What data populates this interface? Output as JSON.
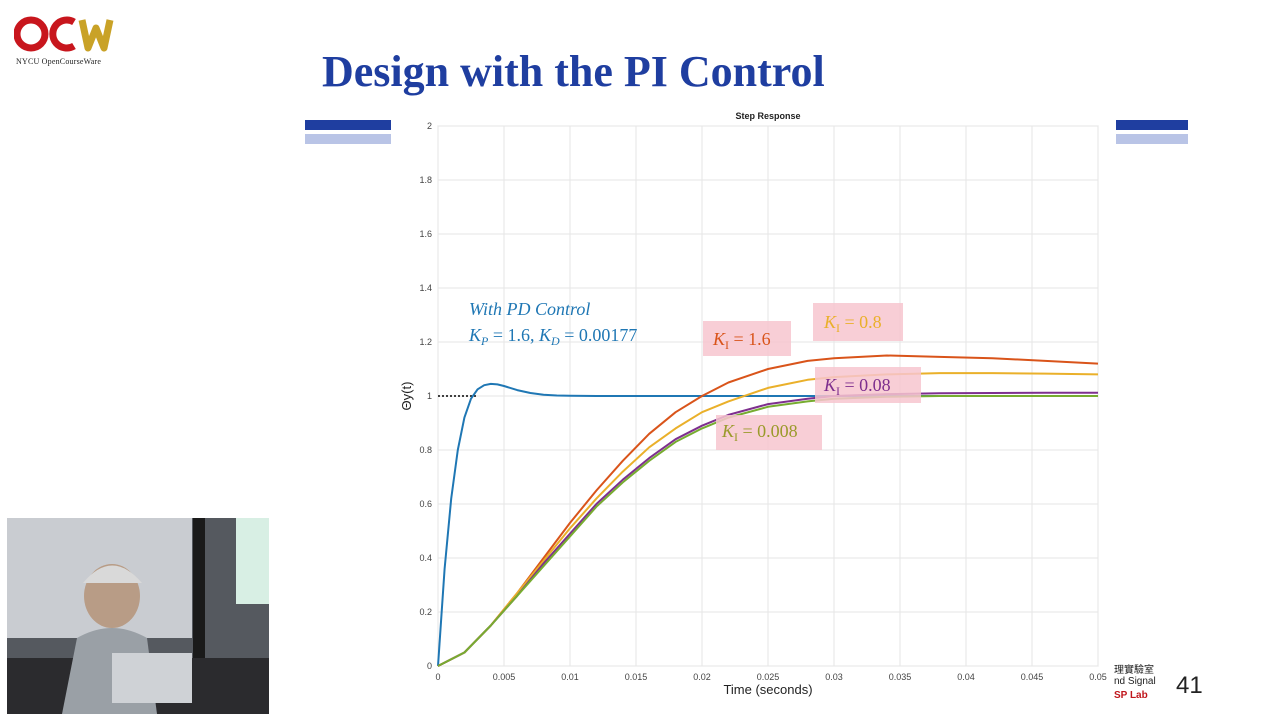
{
  "logo": {
    "text": "OCW",
    "subtitle": "NYCU OpenCourseWare"
  },
  "slide": {
    "title": "Design with the PI Control",
    "page_number": "41",
    "lab_line1": "理實驗室",
    "lab_line2": "nd Signal",
    "lab_line3": "SP Lab"
  },
  "colors": {
    "title": "#1f3ea0",
    "pd": "#1f77b4",
    "ki_1_6": "#d9541a",
    "ki_0_8": "#eab02a",
    "ki_0_08": "#7e2f8e",
    "ki_0_008": "#77ac30",
    "label_bg": "#f7c6cf"
  },
  "chart_data": {
    "type": "line",
    "title": "Step Response",
    "xlabel": "Time (seconds)",
    "ylabel": "Θy(t)",
    "xlim": [
      0,
      0.05
    ],
    "ylim": [
      0,
      2
    ],
    "grid": true,
    "xticks": [
      0,
      0.005,
      0.01,
      0.015,
      0.02,
      0.025,
      0.03,
      0.035,
      0.04,
      0.045,
      0.05
    ],
    "xtick_labels": [
      "0",
      "0.005",
      "0.01",
      "0.015",
      "0.02",
      "0.025",
      "0.03",
      "0.035",
      "0.04",
      "0.045",
      "0.05"
    ],
    "yticks": [
      0,
      0.2,
      0.4,
      0.6,
      0.8,
      1,
      1.2,
      1.4,
      1.6,
      1.8,
      2
    ],
    "ytick_labels": [
      "0",
      "0.2",
      "0.4",
      "0.6",
      "0.8",
      "1",
      "1.2",
      "1.4",
      "1.6",
      "1.8",
      "2"
    ],
    "reference_line": {
      "y": 1,
      "x_from": 0,
      "x_to": 0.003,
      "style": "dotted"
    },
    "series": [
      {
        "key": "pd",
        "color": "#1f77b4",
        "x": [
          0,
          0.0005,
          0.001,
          0.0015,
          0.002,
          0.0025,
          0.003,
          0.0035,
          0.004,
          0.0045,
          0.005,
          0.006,
          0.007,
          0.008,
          0.009,
          0.01,
          0.012,
          0.015,
          0.02,
          0.03,
          0.04,
          0.05
        ],
        "y": [
          0,
          0.36,
          0.62,
          0.8,
          0.92,
          0.99,
          1.025,
          1.04,
          1.045,
          1.043,
          1.037,
          1.022,
          1.011,
          1.005,
          1.002,
          1.001,
          1.0,
          1.0,
          1.0,
          1.0,
          1.0,
          1.0
        ]
      },
      {
        "key": "ki_1_6",
        "color": "#d9541a",
        "x": [
          0,
          0.002,
          0.004,
          0.006,
          0.008,
          0.01,
          0.012,
          0.014,
          0.016,
          0.018,
          0.02,
          0.022,
          0.025,
          0.028,
          0.03,
          0.034,
          0.038,
          0.042,
          0.046,
          0.05
        ],
        "y": [
          0,
          0.05,
          0.15,
          0.27,
          0.4,
          0.53,
          0.65,
          0.76,
          0.86,
          0.94,
          1.0,
          1.05,
          1.1,
          1.13,
          1.14,
          1.15,
          1.145,
          1.14,
          1.13,
          1.12
        ]
      },
      {
        "key": "ki_0_8",
        "color": "#eab02a",
        "x": [
          0,
          0.002,
          0.004,
          0.006,
          0.008,
          0.01,
          0.012,
          0.014,
          0.016,
          0.018,
          0.02,
          0.022,
          0.025,
          0.028,
          0.03,
          0.034,
          0.038,
          0.042,
          0.046,
          0.05
        ],
        "y": [
          0,
          0.05,
          0.15,
          0.27,
          0.39,
          0.51,
          0.62,
          0.72,
          0.81,
          0.88,
          0.94,
          0.98,
          1.03,
          1.06,
          1.07,
          1.08,
          1.085,
          1.085,
          1.083,
          1.08
        ]
      },
      {
        "key": "ki_0_08",
        "color": "#7e2f8e",
        "x": [
          0,
          0.002,
          0.004,
          0.006,
          0.008,
          0.01,
          0.012,
          0.014,
          0.016,
          0.018,
          0.02,
          0.022,
          0.025,
          0.028,
          0.03,
          0.034,
          0.038,
          0.042,
          0.046,
          0.05
        ],
        "y": [
          0,
          0.05,
          0.15,
          0.26,
          0.38,
          0.49,
          0.6,
          0.69,
          0.77,
          0.84,
          0.89,
          0.93,
          0.97,
          0.99,
          1.0,
          1.007,
          1.01,
          1.011,
          1.012,
          1.012
        ]
      },
      {
        "key": "ki_0_008",
        "color": "#77ac30",
        "x": [
          0,
          0.002,
          0.004,
          0.006,
          0.008,
          0.01,
          0.012,
          0.014,
          0.016,
          0.018,
          0.02,
          0.022,
          0.025,
          0.028,
          0.03,
          0.034,
          0.038,
          0.042,
          0.046,
          0.05
        ],
        "y": [
          0,
          0.05,
          0.15,
          0.26,
          0.37,
          0.48,
          0.59,
          0.68,
          0.76,
          0.83,
          0.88,
          0.92,
          0.96,
          0.98,
          0.99,
          0.997,
          1.0,
          1.0,
          1.0,
          1.0
        ]
      }
    ],
    "annotations": {
      "pd_line1": "With PD Control",
      "pd_kp": "1.6",
      "pd_kd": "0.00177",
      "ki_1_6": "1.6",
      "ki_0_8": "0.8",
      "ki_0_08": "0.08",
      "ki_0_008": "0.008"
    }
  }
}
